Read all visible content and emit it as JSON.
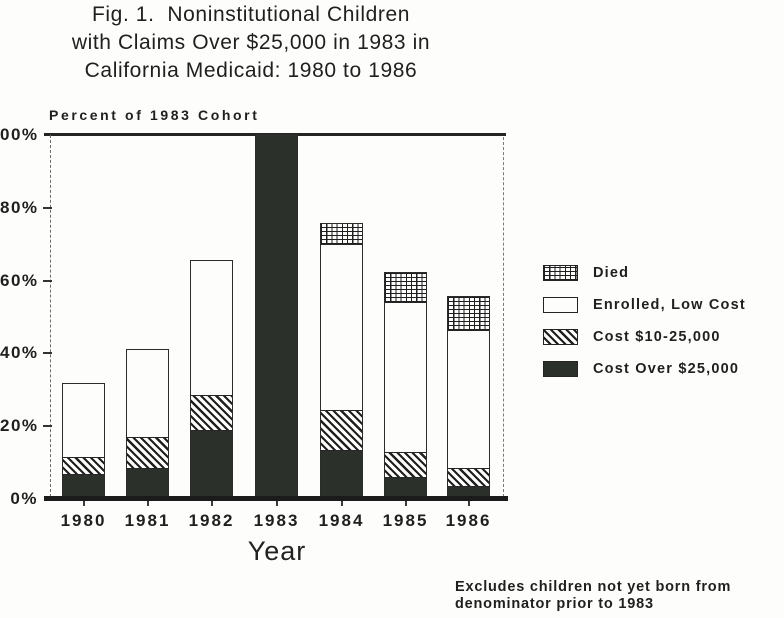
{
  "figure": {
    "title_lines": [
      "Fig. 1.  Noninstitutional Children",
      "with Claims Over $25,000 in 1983 in",
      "California Medicaid: 1980 to 1986"
    ],
    "footnote_lines": [
      "Excludes children not yet born from",
      "denominator prior to 1983"
    ]
  },
  "colors": {
    "ink": "#1f1f1f",
    "bar_fill": "#2b302b",
    "paper": "#fdfdfb"
  },
  "chart_data": {
    "type": "bar",
    "stacked": true,
    "title": "Fig. 1. Noninstitutional Children with Claims Over $25,000 in 1983 in California Medicaid: 1980 to 1986",
    "axis_title": "Percent of 1983 Cohort",
    "xlabel": "Year",
    "ylabel": "Percent of 1983 Cohort",
    "ylim": [
      0,
      100
    ],
    "grid": false,
    "ytick_values": [
      100,
      80,
      60,
      40,
      20,
      0
    ],
    "ytick_labels_displayed": [
      "00%",
      "80%",
      "60%",
      "40%",
      "20%",
      "0%"
    ],
    "categories": [
      "1980",
      "1981",
      "1982",
      "1983",
      "1984",
      "1985",
      "1986"
    ],
    "series": [
      {
        "name": "Cost Over $25,000",
        "pattern": "solid",
        "values": [
          7,
          8.5,
          19,
          100,
          13.5,
          6,
          3.5
        ]
      },
      {
        "name": "Cost $10-25,000",
        "pattern": "diagonal",
        "values": [
          4.5,
          8.5,
          9.5,
          0,
          11,
          7,
          5
        ]
      },
      {
        "name": "Enrolled, Low Cost",
        "pattern": "open",
        "values": [
          20,
          24,
          37,
          0,
          45.5,
          41,
          38
        ]
      },
      {
        "name": "Died",
        "pattern": "grid",
        "values": [
          0,
          0,
          0,
          0,
          5.5,
          8,
          9
        ]
      }
    ],
    "bar_totals": [
      31.5,
      41,
      65.5,
      100,
      75.5,
      62,
      55.5
    ],
    "legend": {
      "position": "right",
      "items": [
        {
          "label": "Died",
          "pattern": "grid"
        },
        {
          "label": "Enrolled, Low Cost",
          "pattern": "open"
        },
        {
          "label": "Cost $10-25,000",
          "pattern": "diagonal"
        },
        {
          "label": "Cost Over $25,000",
          "pattern": "solid"
        }
      ]
    }
  }
}
